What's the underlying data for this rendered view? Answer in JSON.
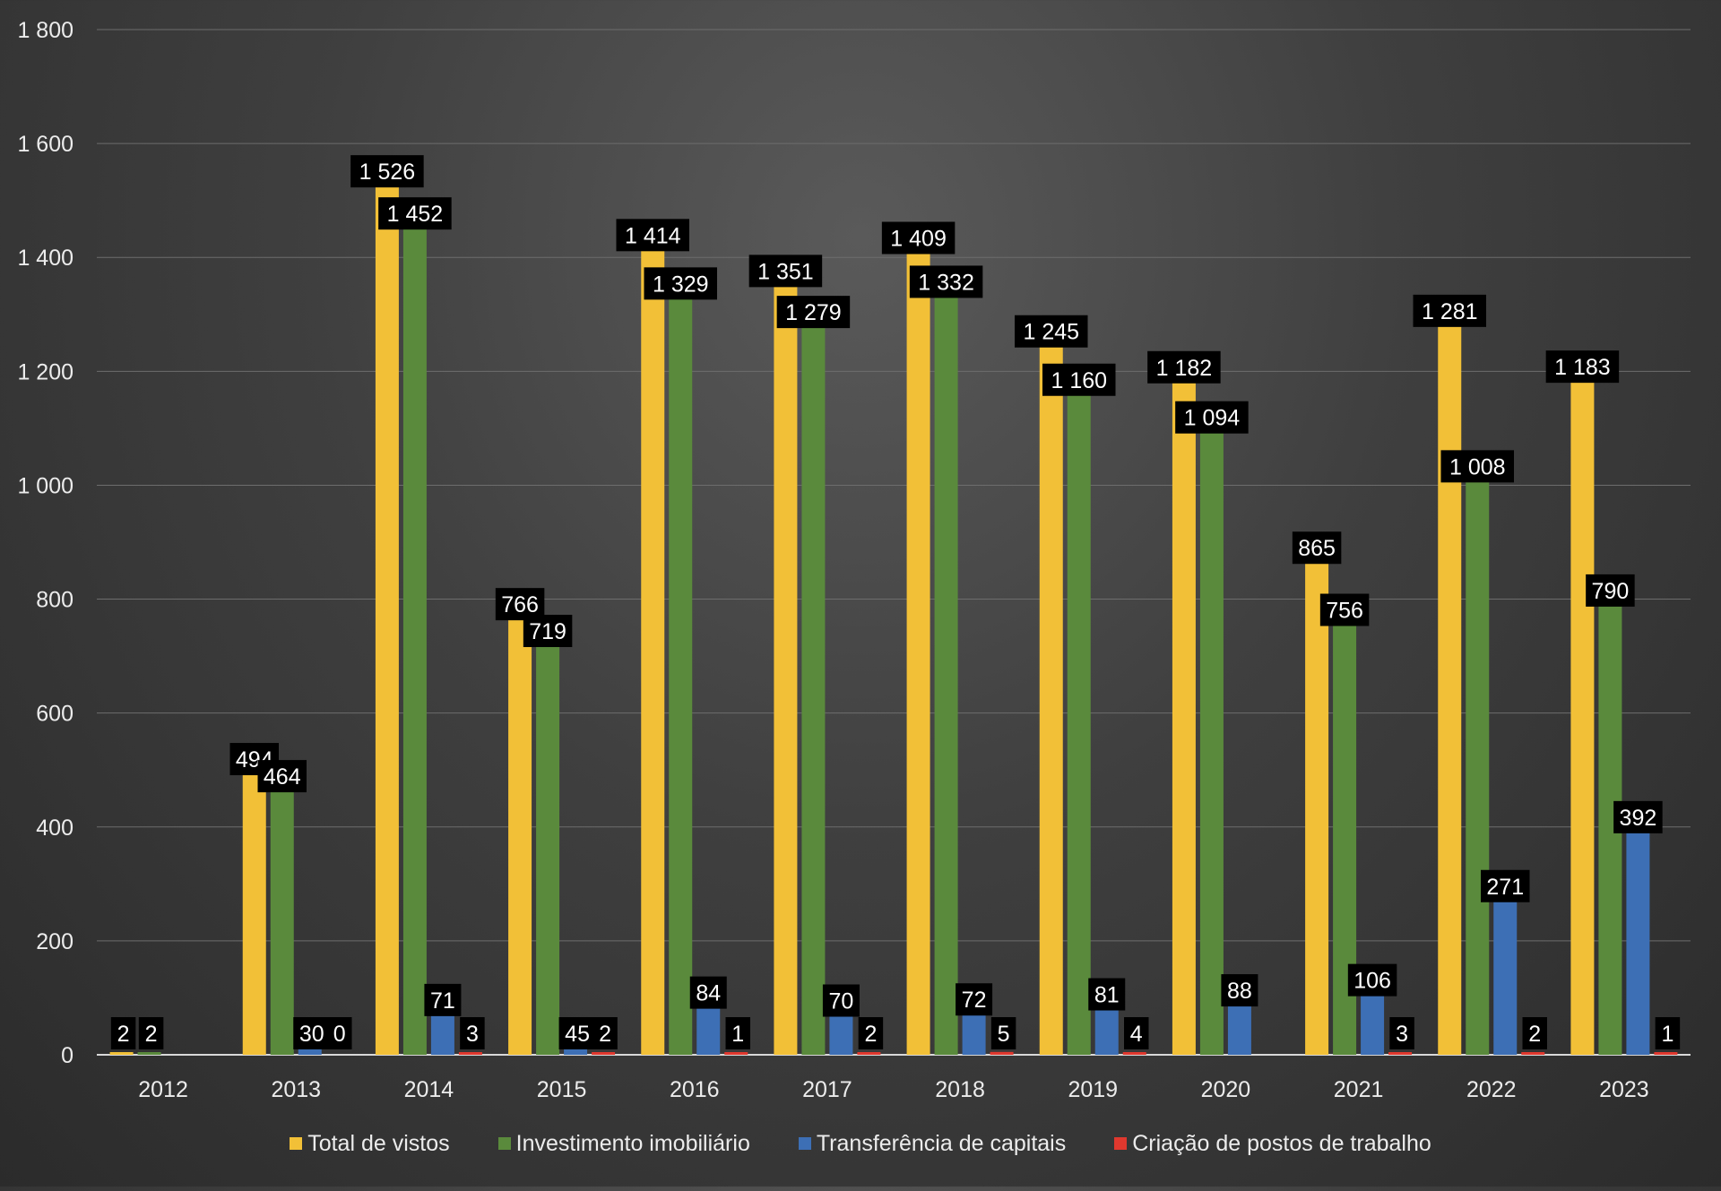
{
  "chart_data": {
    "type": "bar",
    "categories": [
      "2012",
      "2013",
      "2014",
      "2015",
      "2016",
      "2017",
      "2018",
      "2019",
      "2020",
      "2021",
      "2022",
      "2023"
    ],
    "series": [
      {
        "name": "Total de vistos",
        "color": "#f2c037",
        "values": [
          2,
          494,
          1526,
          766,
          1414,
          1351,
          1409,
          1245,
          1182,
          865,
          1281,
          1183
        ],
        "labels": [
          "2",
          "494",
          "1 526",
          "766",
          "1 414",
          "1 351",
          "1 409",
          "1 245",
          "1 182",
          "865",
          "1 281",
          "1 183"
        ]
      },
      {
        "name": "Investimento imobiliário",
        "color": "#5a8a3c",
        "values": [
          2,
          464,
          1452,
          719,
          1329,
          1279,
          1332,
          1160,
          1094,
          756,
          1008,
          790
        ],
        "labels": [
          "2",
          "464",
          "1 452",
          "719",
          "1 329",
          "1 279",
          "1 332",
          "1 160",
          "1 094",
          "756",
          "1 008",
          "790"
        ]
      },
      {
        "name": "Transferência de capitais",
        "color": "#3d6fb5",
        "values": [
          null,
          30,
          71,
          45,
          84,
          70,
          72,
          81,
          88,
          106,
          271,
          392
        ],
        "labels": [
          null,
          "30",
          "71",
          "45",
          "84",
          "70",
          "72",
          "81",
          "88",
          "106",
          "271",
          "392"
        ]
      },
      {
        "name": "Criação de postos de trabalho",
        "color": "#e0382e",
        "values": [
          null,
          0,
          3,
          2,
          1,
          2,
          5,
          4,
          null,
          3,
          2,
          1
        ],
        "labels": [
          null,
          "0",
          "3",
          "2",
          "1",
          "2",
          "5",
          "4",
          null,
          "3",
          "2",
          "1"
        ]
      }
    ],
    "y_ticks": [
      "0",
      "200",
      "400",
      "600",
      "800",
      "1 000",
      "1 200",
      "1 400",
      "1 600",
      "1 800"
    ],
    "ylim": [
      0,
      1800
    ],
    "grid": true,
    "legend_position": "bottom",
    "xlabel": "",
    "ylabel": "",
    "title": ""
  }
}
